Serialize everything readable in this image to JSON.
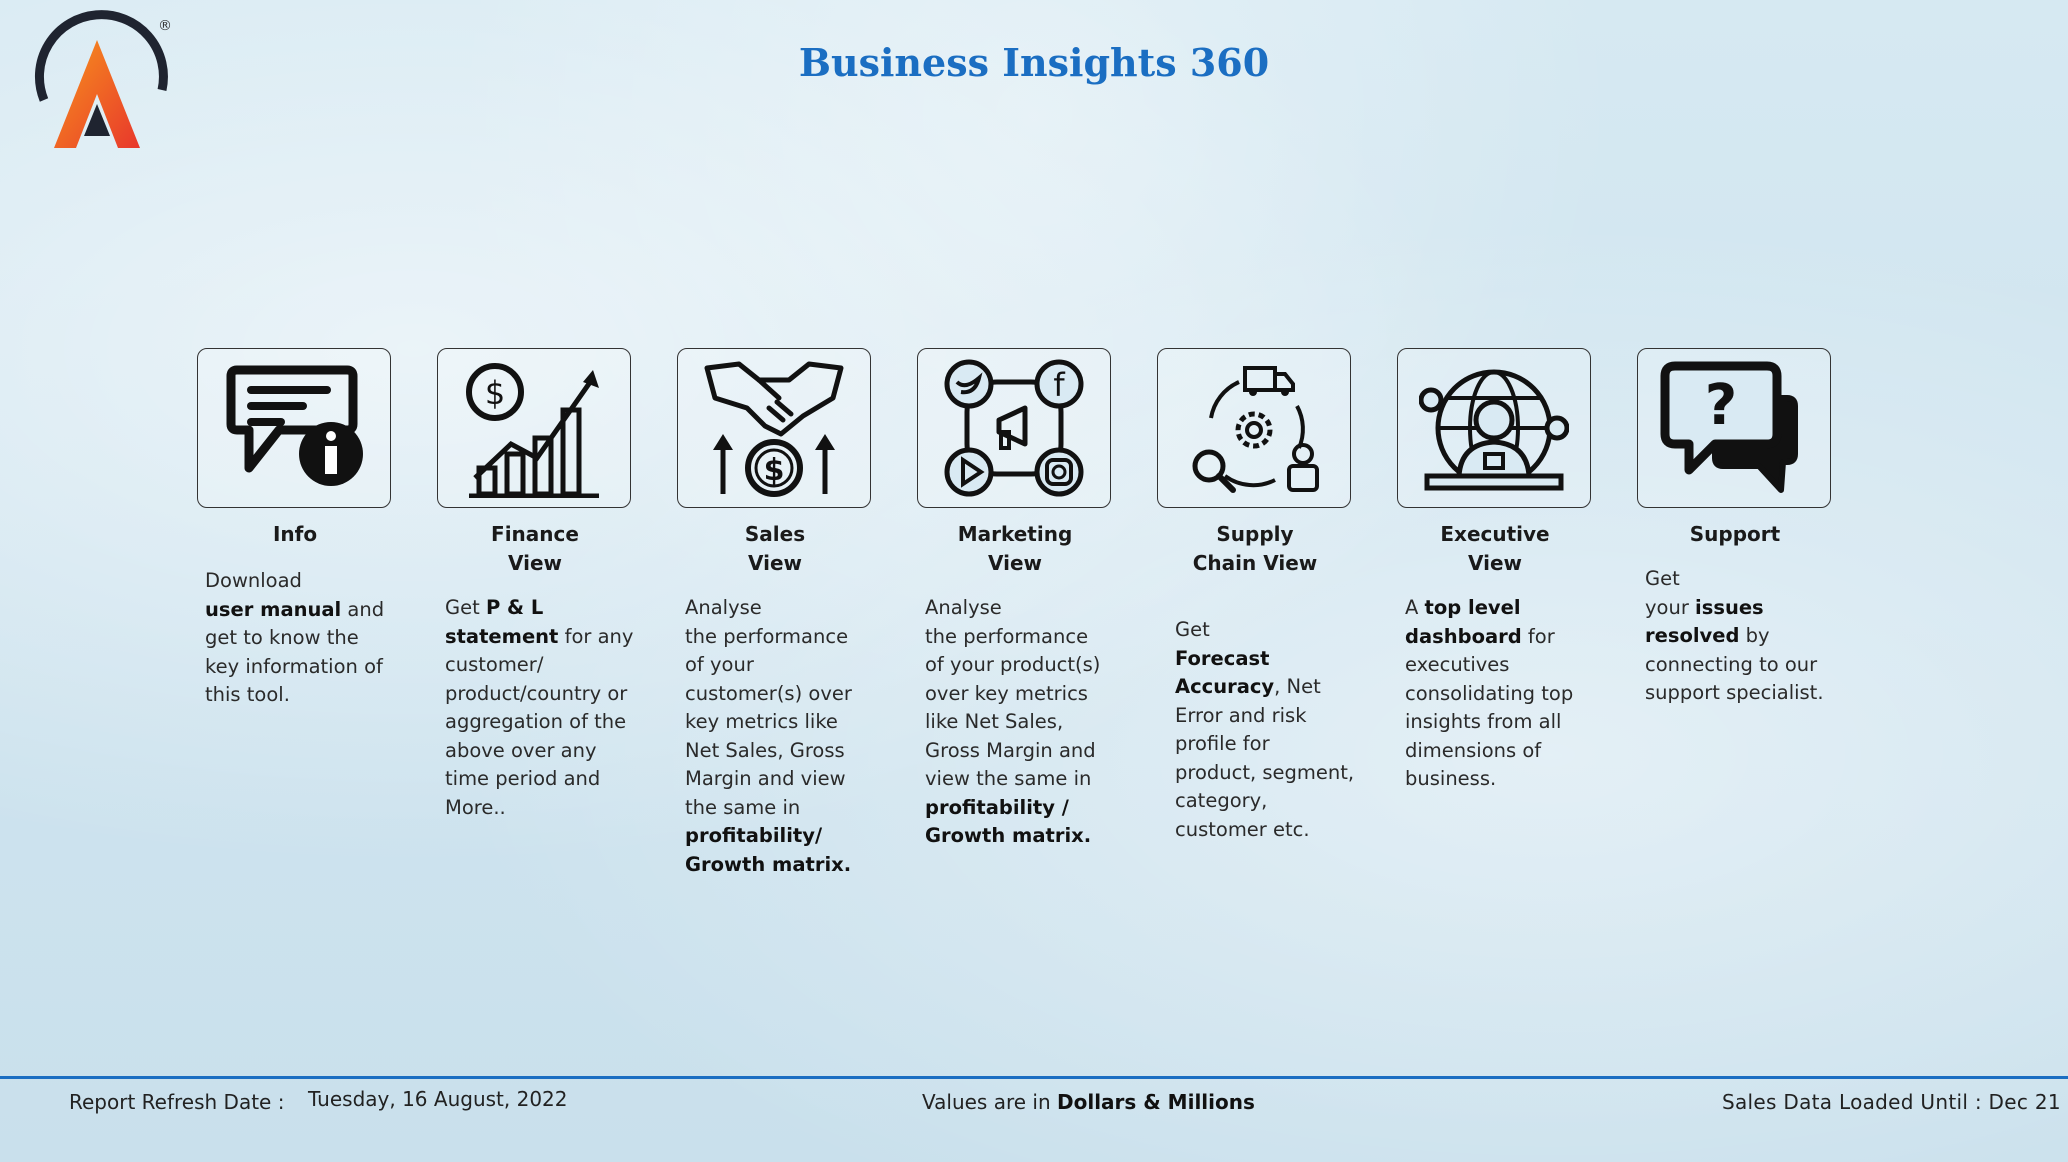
{
  "header": {
    "title": "Business Insights 360",
    "logo_mark": "®"
  },
  "cards": [
    {
      "name": "info",
      "icon": "chat-info-icon",
      "title": "Info",
      "desc": [
        {
          "t": "Download",
          "b": false
        },
        {
          "br": true
        },
        {
          "t": "user manual",
          "b": true
        },
        {
          "t": " and get to know the key information of this tool.",
          "b": false
        }
      ]
    },
    {
      "name": "finance",
      "icon": "finance-growth-icon",
      "title": "Finance\nView",
      "desc": [
        {
          "t": "Get  ",
          "b": false
        },
        {
          "t": "P & L statement",
          "b": true
        },
        {
          "t": " for any customer/ product/country or aggregation of the above over any time period and More..",
          "b": false
        }
      ]
    },
    {
      "name": "sales",
      "icon": "handshake-dollar-icon",
      "title": "Sales\nView",
      "desc": [
        {
          "t": "Analyse",
          "b": false
        },
        {
          "br": true
        },
        {
          "t": "the performance of your customer(s) over key metrics like Net Sales, Gross Margin and view the same in ",
          "b": false
        },
        {
          "t": "profitability/ Growth matrix.",
          "b": true
        }
      ]
    },
    {
      "name": "marketing",
      "icon": "social-media-icon",
      "title": "Marketing\nView",
      "desc": [
        {
          "t": "Analyse",
          "b": false
        },
        {
          "br": true
        },
        {
          "t": "the performance of your product(s) over key metrics like Net Sales, Gross Margin and view the same in ",
          "b": false
        },
        {
          "t": "profitability / Growth matrix.",
          "b": true
        }
      ]
    },
    {
      "name": "supply",
      "icon": "supply-chain-icon",
      "title": "Supply\nChain View",
      "desc": [
        {
          "t": "Get",
          "b": false
        },
        {
          "br": true
        },
        {
          "t": "Forecast Accuracy",
          "b": true
        },
        {
          "t": ", Net Error and risk profile for product, segment, category, customer etc.",
          "b": false
        }
      ]
    },
    {
      "name": "executive",
      "icon": "executive-globe-icon",
      "title": "Executive\nView",
      "desc": [
        {
          "t": "A ",
          "b": false
        },
        {
          "t": "top level dashboard",
          "b": true
        },
        {
          "t": " for executives consolidating top insights from all dimensions of business.",
          "b": false
        }
      ]
    },
    {
      "name": "support",
      "icon": "question-chat-icon",
      "title": "Support",
      "desc": [
        {
          "t": "Get",
          "b": false
        },
        {
          "br": true
        },
        {
          "t": "your ",
          "b": false
        },
        {
          "t": "issues resolved",
          "b": true
        },
        {
          "t": " by connecting to our support specialist.",
          "b": false
        }
      ]
    }
  ],
  "footer": {
    "refresh_label": "Report Refresh Date :",
    "refresh_date": "Tuesday, 16 August, 2022",
    "values_prefix": "Values are in ",
    "values_bold": "Dollars & Millions",
    "loaded": "Sales Data Loaded Until : Dec 21"
  },
  "colors": {
    "title": "#1b6ec2",
    "accent_orange": "#f26a21",
    "divider": "#1b6ec2"
  }
}
